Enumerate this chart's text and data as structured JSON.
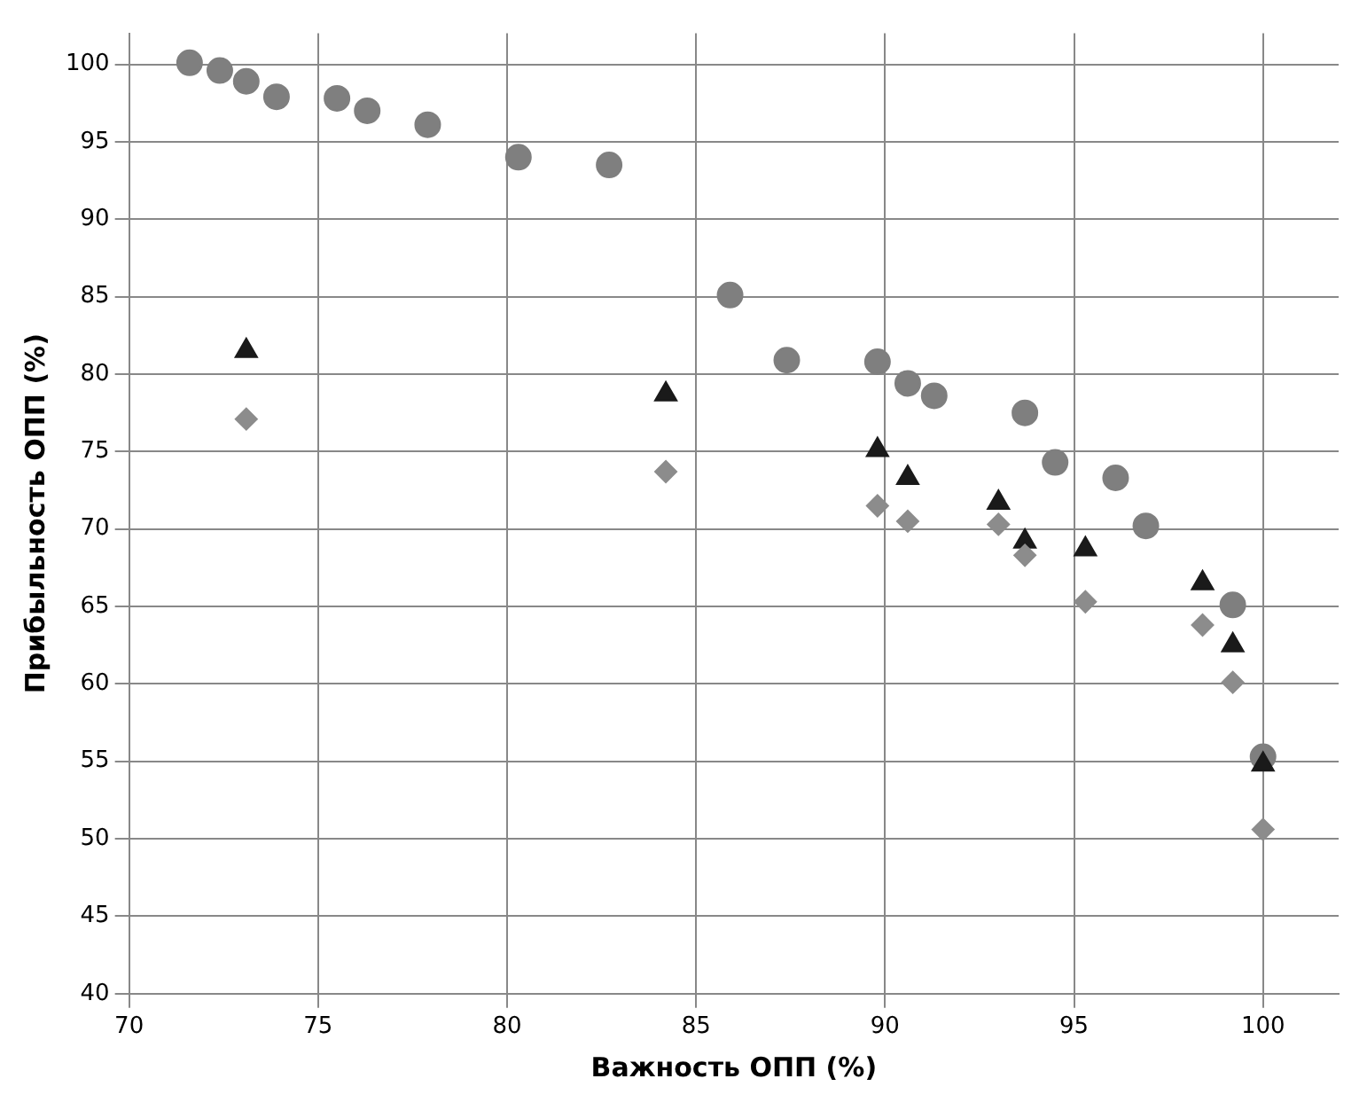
{
  "chart_data": {
    "type": "scatter",
    "xlabel": "Важность ОПП (%)",
    "ylabel": "Прибыльность ОПП (%)",
    "xlim": [
      70,
      102
    ],
    "xticks": [
      70,
      75,
      80,
      85,
      90,
      95,
      100
    ],
    "ylim": [
      40,
      102
    ],
    "yticks": [
      40,
      45,
      50,
      55,
      60,
      65,
      70,
      75,
      80,
      85,
      90,
      95,
      100
    ],
    "grid": true,
    "legend": false,
    "series": [
      {
        "color": "#7f7f7f",
        "marker": "circle",
        "x": [
          71.6,
          72.4,
          73.1,
          73.9,
          75.5,
          76.3,
          77.9,
          80.3,
          82.7,
          85.9,
          87.4,
          89.8,
          90.6,
          91.3,
          93.7,
          94.5,
          96.1,
          96.9,
          99.2,
          100
        ],
        "values": [
          100.1,
          99.6,
          98.9,
          97.9,
          97.8,
          97.0,
          96.1,
          94.0,
          93.5,
          85.1,
          80.9,
          80.8,
          79.4,
          78.6,
          77.5,
          74.3,
          73.3,
          70.2,
          65.1,
          55.3
        ]
      },
      {
        "color": "#1a1a1a",
        "marker": "triangle",
        "x": [
          73.1,
          84.2,
          89.8,
          90.6,
          93.0,
          93.7,
          95.3,
          98.4,
          99.2,
          100
        ],
        "values": [
          81.5,
          78.7,
          75.1,
          73.3,
          71.7,
          69.2,
          68.7,
          66.5,
          62.5,
          54.8
        ]
      },
      {
        "color": "#8c8c8c",
        "marker": "diamond",
        "x": [
          73.1,
          84.2,
          89.8,
          90.6,
          93.0,
          93.7,
          95.3,
          98.4,
          99.2,
          100
        ],
        "values": [
          77.1,
          73.7,
          71.5,
          70.5,
          70.3,
          68.3,
          65.3,
          63.8,
          60.1,
          50.6
        ]
      }
    ]
  }
}
